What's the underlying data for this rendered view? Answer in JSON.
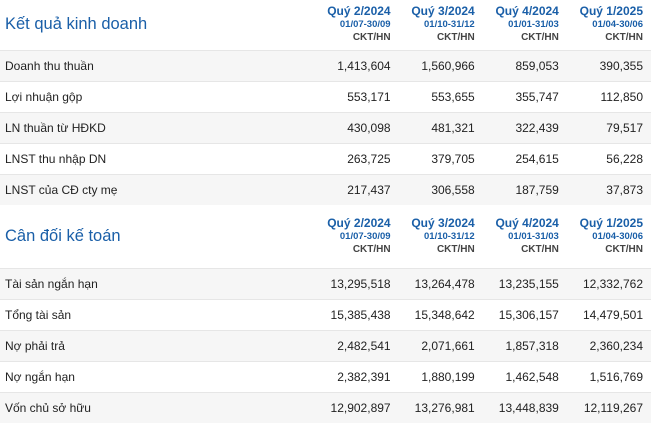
{
  "sections": [
    {
      "title": "Kết quả kinh doanh",
      "periods": [
        {
          "quarter": "Quý 2/2024",
          "range": "01/07-30/09",
          "unit": "CKT/HN"
        },
        {
          "quarter": "Quý 3/2024",
          "range": "01/10-31/12",
          "unit": "CKT/HN"
        },
        {
          "quarter": "Quý 4/2024",
          "range": "01/01-31/03",
          "unit": "CKT/HN"
        },
        {
          "quarter": "Quý 1/2025",
          "range": "01/04-30/06",
          "unit": "CKT/HN"
        }
      ],
      "rows": [
        {
          "label": "Doanh thu thuần",
          "values": [
            "1,413,604",
            "1,560,966",
            "859,053",
            "390,355"
          ]
        },
        {
          "label": "Lợi nhuận gộp",
          "values": [
            "553,171",
            "553,655",
            "355,747",
            "112,850"
          ]
        },
        {
          "label": "LN thuần từ HĐKD",
          "values": [
            "430,098",
            "481,321",
            "322,439",
            "79,517"
          ]
        },
        {
          "label": "LNST thu nhập DN",
          "values": [
            "263,725",
            "379,705",
            "254,615",
            "56,228"
          ]
        },
        {
          "label": "LNST của CĐ cty mẹ",
          "values": [
            "217,437",
            "306,558",
            "187,759",
            "37,873"
          ]
        }
      ]
    },
    {
      "title": "Cân đối kế toán",
      "periods": [
        {
          "quarter": "Quý 2/2024",
          "range": "01/07-30/09",
          "unit": "CKT/HN"
        },
        {
          "quarter": "Quý 3/2024",
          "range": "01/10-31/12",
          "unit": "CKT/HN"
        },
        {
          "quarter": "Quý 4/2024",
          "range": "01/01-31/03",
          "unit": "CKT/HN"
        },
        {
          "quarter": "Quý 1/2025",
          "range": "01/04-30/06",
          "unit": "CKT/HN"
        }
      ],
      "rows": [
        {
          "label": "Tài sản ngắn hạn",
          "values": [
            "13,295,518",
            "13,264,478",
            "13,235,155",
            "12,332,762"
          ]
        },
        {
          "label": "Tổng tài sản",
          "values": [
            "15,385,438",
            "15,348,642",
            "15,306,157",
            "14,479,501"
          ]
        },
        {
          "label": "Nợ phải trả",
          "values": [
            "2,482,541",
            "2,071,661",
            "1,857,318",
            "2,360,234"
          ]
        },
        {
          "label": "Nợ ngắn hạn",
          "values": [
            "2,382,391",
            "1,880,199",
            "1,462,548",
            "1,516,769"
          ]
        },
        {
          "label": "Vốn chủ sở hữu",
          "values": [
            "12,902,897",
            "13,276,981",
            "13,448,839",
            "12,119,267"
          ]
        }
      ]
    }
  ],
  "colors": {
    "accent": "#1a5fa8",
    "row_alt": "#f6f6f6",
    "divider": "#e6e6e6"
  }
}
